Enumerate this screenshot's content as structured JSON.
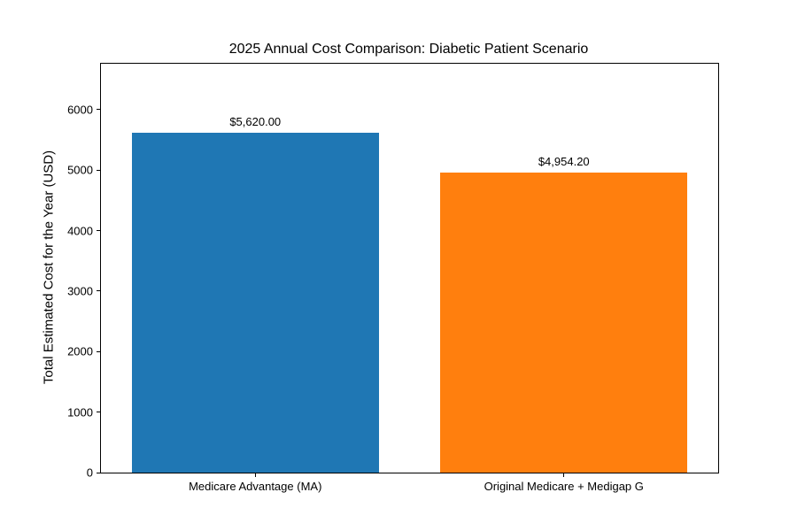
{
  "chart_data": {
    "type": "bar",
    "title": "2025 Annual Cost Comparison: Diabetic Patient Scenario",
    "ylabel": "Total Estimated Cost for the Year (USD)",
    "xlabel": "",
    "categories": [
      "Medicare Advantage (MA)",
      "Original Medicare + Medigap G"
    ],
    "values": [
      5620,
      4954.2
    ],
    "value_labels": [
      "$5,620.00",
      "$4,954.20"
    ],
    "bar_colors": [
      "#1f77b4",
      "#ff7f0e"
    ],
    "yticks": [
      0,
      1000,
      2000,
      3000,
      4000,
      5000,
      6000
    ],
    "ylim": [
      0,
      6760
    ],
    "grid": false,
    "legend": "none",
    "background_color": "#ffffff",
    "text_color": "#000000"
  }
}
